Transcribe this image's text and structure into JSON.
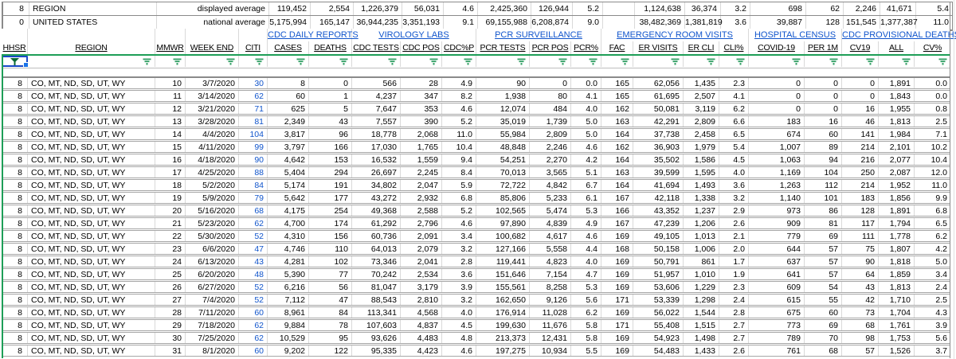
{
  "colors": {
    "link_blue": "#1155cc",
    "citi_blue": "#1155cc",
    "filter_green": "#1e9e57",
    "funnel_green": "#2f9e62",
    "active_funnel_green": "#0c6b34",
    "selection_border_blue": "#1b49c8",
    "fill_handle_blue": "#1a73e8"
  },
  "summary_rows": [
    {
      "hhsr": "8",
      "region": "REGION",
      "label": "displayed average",
      "values": [
        "119,452",
        "2,554",
        "1,226,379",
        "56,031",
        "4.6",
        "2,425,360",
        "126,944",
        "5.2",
        "",
        "1,124,638",
        "36,374",
        "3.2",
        "698",
        "62",
        "2,246",
        "41,671",
        "5.4"
      ]
    },
    {
      "hhsr": "0",
      "region": "UNITED STATES",
      "label": "national average",
      "values": [
        "5,175,994",
        "165,147",
        "36,944,235",
        "3,351,193",
        "9.1",
        "69,155,988",
        "6,208,874",
        "9.0",
        "",
        "38,482,369",
        "1,381,819",
        "3.6",
        "39,887",
        "128",
        "151,545",
        "1,377,387",
        "11.0"
      ]
    }
  ],
  "group_headers": [
    {
      "label": "CDC DAILY REPORTS"
    },
    {
      "label": "VIROLOGY LABS"
    },
    {
      "label": "PCR SURVEILLANCE"
    },
    {
      "label": "EMERGENCY ROOM VISITS"
    },
    {
      "label": "HOSPITAL CENSUS"
    },
    {
      "label": "CDC PROVISIONAL DEATHS"
    }
  ],
  "columns": [
    "HHSR",
    "REGION",
    "MMWR",
    "WEEK END",
    "CITI",
    "CASES",
    "DEATHS",
    "CDC TESTS",
    "CDC POS",
    "CDC%P",
    "PCR TESTS",
    "PCR POS",
    "PCR%",
    "FAC",
    "ER VISITS",
    "ER CLI",
    "CLI%",
    "COVID-19",
    "PER 1M",
    "CV19",
    "ALL",
    "CV%"
  ],
  "filter": {
    "active_column_index": 0,
    "icon": "filter-funnel-icon"
  },
  "rows": [
    [
      "8",
      "CO, MT, ND, SD, UT, WY",
      "10",
      "3/7/2020",
      "30",
      "8",
      "0",
      "566",
      "28",
      "4.9",
      "90",
      "0",
      "0.0",
      "165",
      "62,056",
      "1,435",
      "2.3",
      "0",
      "0",
      "0",
      "1,891",
      "0.0"
    ],
    [
      "8",
      "CO, MT, ND, SD, UT, WY",
      "11",
      "3/14/2020",
      "62",
      "60",
      "1",
      "4,237",
      "347",
      "8.2",
      "1,938",
      "80",
      "4.1",
      "165",
      "61,695",
      "2,507",
      "4.1",
      "0",
      "0",
      "0",
      "1,843",
      "0.0"
    ],
    [
      "8",
      "CO, MT, ND, SD, UT, WY",
      "12",
      "3/21/2020",
      "71",
      "625",
      "5",
      "7,647",
      "353",
      "4.6",
      "12,074",
      "484",
      "4.0",
      "162",
      "50,081",
      "3,119",
      "6.2",
      "0",
      "0",
      "16",
      "1,955",
      "0.8"
    ],
    [
      "8",
      "CO, MT, ND, SD, UT, WY",
      "13",
      "3/28/2020",
      "81",
      "2,349",
      "43",
      "7,557",
      "390",
      "5.2",
      "35,019",
      "1,739",
      "5.0",
      "163",
      "42,291",
      "2,809",
      "6.6",
      "183",
      "16",
      "46",
      "1,813",
      "2.5"
    ],
    [
      "8",
      "CO, MT, ND, SD, UT, WY",
      "14",
      "4/4/2020",
      "104",
      "3,817",
      "96",
      "18,778",
      "2,068",
      "11.0",
      "55,984",
      "2,809",
      "5.0",
      "164",
      "37,738",
      "2,458",
      "6.5",
      "674",
      "60",
      "141",
      "1,984",
      "7.1"
    ],
    [
      "8",
      "CO, MT, ND, SD, UT, WY",
      "15",
      "4/11/2020",
      "99",
      "3,797",
      "166",
      "17,030",
      "1,765",
      "10.4",
      "48,848",
      "2,246",
      "4.6",
      "162",
      "36,903",
      "1,979",
      "5.4",
      "1,007",
      "89",
      "214",
      "2,101",
      "10.2"
    ],
    [
      "8",
      "CO, MT, ND, SD, UT, WY",
      "16",
      "4/18/2020",
      "90",
      "4,642",
      "153",
      "16,532",
      "1,559",
      "9.4",
      "54,251",
      "2,270",
      "4.2",
      "164",
      "35,502",
      "1,586",
      "4.5",
      "1,063",
      "94",
      "216",
      "2,077",
      "10.4"
    ],
    [
      "8",
      "CO, MT, ND, SD, UT, WY",
      "17",
      "4/25/2020",
      "88",
      "5,404",
      "294",
      "26,697",
      "2,245",
      "8.4",
      "70,013",
      "3,565",
      "5.1",
      "163",
      "39,599",
      "1,595",
      "4.0",
      "1,169",
      "104",
      "250",
      "2,087",
      "12.0"
    ],
    [
      "8",
      "CO, MT, ND, SD, UT, WY",
      "18",
      "5/2/2020",
      "84",
      "5,174",
      "191",
      "34,802",
      "2,047",
      "5.9",
      "72,722",
      "4,842",
      "6.7",
      "164",
      "41,694",
      "1,493",
      "3.6",
      "1,263",
      "112",
      "214",
      "1,952",
      "11.0"
    ],
    [
      "8",
      "CO, MT, ND, SD, UT, WY",
      "19",
      "5/9/2020",
      "79",
      "5,642",
      "177",
      "43,272",
      "2,932",
      "6.8",
      "85,806",
      "5,233",
      "6.1",
      "167",
      "42,118",
      "1,338",
      "3.2",
      "1,140",
      "101",
      "183",
      "1,856",
      "9.9"
    ],
    [
      "8",
      "CO, MT, ND, SD, UT, WY",
      "20",
      "5/16/2020",
      "68",
      "4,175",
      "254",
      "49,368",
      "2,588",
      "5.2",
      "102,565",
      "5,474",
      "5.3",
      "166",
      "43,352",
      "1,237",
      "2.9",
      "973",
      "86",
      "128",
      "1,891",
      "6.8"
    ],
    [
      "8",
      "CO, MT, ND, SD, UT, WY",
      "21",
      "5/23/2020",
      "62",
      "4,700",
      "174",
      "61,292",
      "2,796",
      "4.6",
      "97,890",
      "4,839",
      "4.9",
      "167",
      "47,239",
      "1,206",
      "2.6",
      "909",
      "81",
      "117",
      "1,794",
      "6.5"
    ],
    [
      "8",
      "CO, MT, ND, SD, UT, WY",
      "22",
      "5/30/2020",
      "52",
      "4,310",
      "156",
      "60,736",
      "2,091",
      "3.4",
      "100,682",
      "4,617",
      "4.6",
      "169",
      "49,105",
      "1,013",
      "2.1",
      "779",
      "69",
      "111",
      "1,778",
      "6.2"
    ],
    [
      "8",
      "CO, MT, ND, SD, UT, WY",
      "23",
      "6/6/2020",
      "47",
      "4,746",
      "110",
      "64,013",
      "2,079",
      "3.2",
      "127,166",
      "5,558",
      "4.4",
      "168",
      "50,158",
      "1,006",
      "2.0",
      "644",
      "57",
      "75",
      "1,807",
      "4.2"
    ],
    [
      "8",
      "CO, MT, ND, SD, UT, WY",
      "24",
      "6/13/2020",
      "43",
      "4,281",
      "102",
      "73,346",
      "2,041",
      "2.8",
      "119,441",
      "4,823",
      "4.0",
      "169",
      "50,791",
      "861",
      "1.7",
      "637",
      "57",
      "90",
      "1,818",
      "5.0"
    ],
    [
      "8",
      "CO, MT, ND, SD, UT, WY",
      "25",
      "6/20/2020",
      "48",
      "5,390",
      "77",
      "70,242",
      "2,534",
      "3.6",
      "151,646",
      "7,154",
      "4.7",
      "169",
      "51,957",
      "1,010",
      "1.9",
      "641",
      "57",
      "64",
      "1,859",
      "3.4"
    ],
    [
      "8",
      "CO, MT, ND, SD, UT, WY",
      "26",
      "6/27/2020",
      "52",
      "6,216",
      "56",
      "81,047",
      "3,179",
      "3.9",
      "155,561",
      "8,258",
      "5.3",
      "169",
      "53,606",
      "1,229",
      "2.3",
      "609",
      "54",
      "43",
      "1,813",
      "2.4"
    ],
    [
      "8",
      "CO, MT, ND, SD, UT, WY",
      "27",
      "7/4/2020",
      "52",
      "7,112",
      "47",
      "88,543",
      "2,810",
      "3.2",
      "162,650",
      "9,126",
      "5.6",
      "171",
      "53,339",
      "1,298",
      "2.4",
      "615",
      "55",
      "42",
      "1,710",
      "2.5"
    ],
    [
      "8",
      "CO, MT, ND, SD, UT, WY",
      "28",
      "7/11/2020",
      "60",
      "8,961",
      "84",
      "113,341",
      "4,568",
      "4.0",
      "176,914",
      "11,028",
      "6.2",
      "169",
      "56,022",
      "1,544",
      "2.8",
      "675",
      "60",
      "73",
      "1,704",
      "4.3"
    ],
    [
      "8",
      "CO, MT, ND, SD, UT, WY",
      "29",
      "7/18/2020",
      "62",
      "9,884",
      "78",
      "107,603",
      "4,837",
      "4.5",
      "199,630",
      "11,676",
      "5.8",
      "171",
      "55,408",
      "1,515",
      "2.7",
      "773",
      "69",
      "68",
      "1,761",
      "3.9"
    ],
    [
      "8",
      "CO, MT, ND, SD, UT, WY",
      "30",
      "7/25/2020",
      "62",
      "10,529",
      "95",
      "93,626",
      "4,483",
      "4.8",
      "213,373",
      "12,431",
      "5.8",
      "169",
      "54,923",
      "1,498",
      "2.7",
      "789",
      "70",
      "98",
      "1,753",
      "5.6"
    ],
    [
      "8",
      "CO, MT, ND, SD, UT, WY",
      "31",
      "8/1/2020",
      "60",
      "9,202",
      "122",
      "95,335",
      "4,423",
      "4.6",
      "197,275",
      "10,934",
      "5.5",
      "169",
      "54,483",
      "1,433",
      "2.6",
      "761",
      "68",
      "57",
      "1,526",
      "3.7"
    ]
  ]
}
